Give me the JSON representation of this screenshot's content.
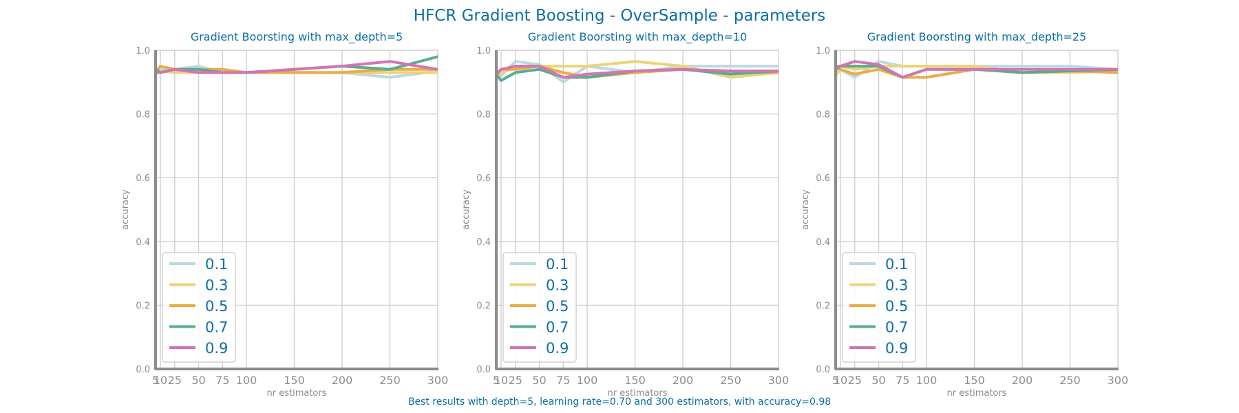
{
  "figure": {
    "title": "HFCR Gradient Boosting - OverSample - parameters",
    "footer": "Best results with depth=5, learning rate=0.70 and 300 estimators, with accuracy=0.98"
  },
  "colors": {
    "text": "#0b6ea8",
    "tick": "#8c8c8c",
    "grid": "#cfcfcf",
    "axis": "#8c8c8c",
    "0.1": "#bcd9e0",
    "0.3": "#ead47a",
    "0.5": "#e8ad45",
    "0.7": "#5aab95",
    "0.9": "#d275b3"
  },
  "chart_data": [
    {
      "type": "line",
      "title": "Gradient Boorsting with max_depth=5",
      "xlabel": "nr estimators",
      "ylabel": "accuracy",
      "x": [
        5,
        10,
        25,
        50,
        75,
        100,
        150,
        200,
        250,
        300
      ],
      "xticks": [
        "5",
        "10",
        "25",
        "50",
        "75",
        "100",
        "150",
        "200",
        "250",
        "300"
      ],
      "xlim": [
        5,
        300
      ],
      "ylim": [
        0.0,
        1.0
      ],
      "yticks": [
        "0.0",
        "0.2",
        "0.4",
        "0.6",
        "0.8",
        "1.0"
      ],
      "legend_position": "lower-left",
      "series": [
        {
          "name": "0.1",
          "values": [
            0.93,
            0.94,
            0.94,
            0.95,
            0.93,
            0.93,
            0.93,
            0.93,
            0.915,
            0.935
          ]
        },
        {
          "name": "0.3",
          "values": [
            0.94,
            0.935,
            0.93,
            0.93,
            0.93,
            0.93,
            0.93,
            0.93,
            0.93,
            0.93
          ]
        },
        {
          "name": "0.5",
          "values": [
            0.93,
            0.95,
            0.94,
            0.94,
            0.94,
            0.93,
            0.93,
            0.93,
            0.94,
            0.94
          ]
        },
        {
          "name": "0.7",
          "values": [
            0.94,
            0.93,
            0.94,
            0.94,
            0.93,
            0.93,
            0.94,
            0.95,
            0.94,
            0.98
          ]
        },
        {
          "name": "0.9",
          "values": [
            0.93,
            0.93,
            0.94,
            0.93,
            0.93,
            0.93,
            0.94,
            0.95,
            0.965,
            0.94
          ]
        }
      ]
    },
    {
      "type": "line",
      "title": "Gradient Boorsting with max_depth=10",
      "xlabel": "nr estimators",
      "ylabel": "accuracy",
      "x": [
        5,
        10,
        25,
        50,
        75,
        100,
        150,
        200,
        250,
        300
      ],
      "xticks": [
        "5",
        "10",
        "25",
        "50",
        "75",
        "100",
        "150",
        "200",
        "250",
        "300"
      ],
      "xlim": [
        5,
        300
      ],
      "ylim": [
        0.0,
        1.0
      ],
      "yticks": [
        "0.0",
        "0.2",
        "0.4",
        "0.6",
        "0.8",
        "1.0"
      ],
      "legend_position": "lower-left",
      "series": [
        {
          "name": "0.1",
          "values": [
            0.93,
            0.92,
            0.965,
            0.955,
            0.9,
            0.95,
            0.93,
            0.95,
            0.95,
            0.95
          ]
        },
        {
          "name": "0.3",
          "values": [
            0.92,
            0.93,
            0.945,
            0.95,
            0.95,
            0.95,
            0.965,
            0.95,
            0.915,
            0.93
          ]
        },
        {
          "name": "0.5",
          "values": [
            0.92,
            0.94,
            0.94,
            0.95,
            0.93,
            0.915,
            0.93,
            0.94,
            0.93,
            0.93
          ]
        },
        {
          "name": "0.7",
          "values": [
            0.925,
            0.905,
            0.93,
            0.94,
            0.915,
            0.915,
            0.935,
            0.94,
            0.925,
            0.935
          ]
        },
        {
          "name": "0.9",
          "values": [
            0.925,
            0.94,
            0.95,
            0.95,
            0.915,
            0.925,
            0.935,
            0.94,
            0.935,
            0.935
          ]
        }
      ]
    },
    {
      "type": "line",
      "title": "Gradient Boorsting with max_depth=25",
      "xlabel": "nr estimators",
      "ylabel": "accuracy",
      "x": [
        5,
        10,
        25,
        50,
        75,
        100,
        150,
        200,
        250,
        300
      ],
      "xticks": [
        "5",
        "10",
        "25",
        "50",
        "75",
        "100",
        "150",
        "200",
        "250",
        "300"
      ],
      "xlim": [
        5,
        300
      ],
      "ylim": [
        0.0,
        1.0
      ],
      "yticks": [
        "0.0",
        "0.2",
        "0.4",
        "0.6",
        "0.8",
        "1.0"
      ],
      "legend_position": "lower-left",
      "series": [
        {
          "name": "0.1",
          "values": [
            0.92,
            0.94,
            0.915,
            0.965,
            0.95,
            0.95,
            0.95,
            0.95,
            0.95,
            0.94
          ]
        },
        {
          "name": "0.3",
          "values": [
            0.915,
            0.95,
            0.94,
            0.95,
            0.95,
            0.95,
            0.95,
            0.93,
            0.93,
            0.935
          ]
        },
        {
          "name": "0.5",
          "values": [
            0.95,
            0.94,
            0.925,
            0.94,
            0.915,
            0.915,
            0.94,
            0.93,
            0.935,
            0.93
          ]
        },
        {
          "name": "0.7",
          "values": [
            0.94,
            0.95,
            0.95,
            0.95,
            0.915,
            0.94,
            0.94,
            0.93,
            0.935,
            0.94
          ]
        },
        {
          "name": "0.9",
          "values": [
            0.95,
            0.95,
            0.965,
            0.955,
            0.915,
            0.94,
            0.94,
            0.94,
            0.94,
            0.94
          ]
        }
      ]
    }
  ]
}
